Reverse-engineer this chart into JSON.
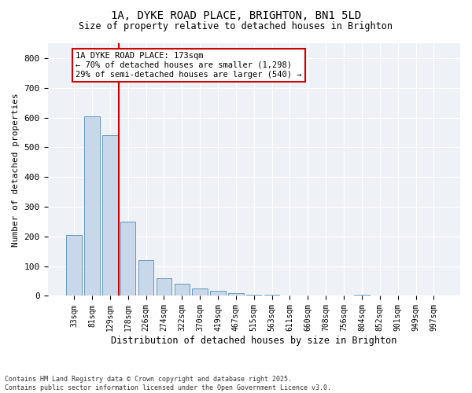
{
  "title_line1": "1A, DYKE ROAD PLACE, BRIGHTON, BN1 5LD",
  "title_line2": "Size of property relative to detached houses in Brighton",
  "xlabel": "Distribution of detached houses by size in Brighton",
  "ylabel": "Number of detached properties",
  "categories": [
    "33sqm",
    "81sqm",
    "129sqm",
    "178sqm",
    "226sqm",
    "274sqm",
    "322sqm",
    "370sqm",
    "419sqm",
    "467sqm",
    "515sqm",
    "563sqm",
    "611sqm",
    "660sqm",
    "708sqm",
    "756sqm",
    "804sqm",
    "852sqm",
    "901sqm",
    "949sqm",
    "997sqm"
  ],
  "values": [
    205,
    605,
    540,
    250,
    120,
    60,
    40,
    25,
    18,
    8,
    5,
    3,
    2,
    2,
    1,
    1,
    5,
    1,
    1,
    1,
    2
  ],
  "bar_color": "#c8d8ea",
  "bar_edge_color": "#6699bb",
  "vline_color": "#cc0000",
  "annotation_text": "1A DYKE ROAD PLACE: 173sqm\n← 70% of detached houses are smaller (1,298)\n29% of semi-detached houses are larger (540) →",
  "annotation_box_facecolor": "#ffffff",
  "annotation_box_edgecolor": "#cc0000",
  "ylim": [
    0,
    850
  ],
  "yticks": [
    0,
    100,
    200,
    300,
    400,
    500,
    600,
    700,
    800
  ],
  "bg_color": "#eef2f7",
  "grid_color": "#ffffff",
  "footnote_line1": "Contains HM Land Registry data © Crown copyright and database right 2025.",
  "footnote_line2": "Contains public sector information licensed under the Open Government Licence v3.0."
}
